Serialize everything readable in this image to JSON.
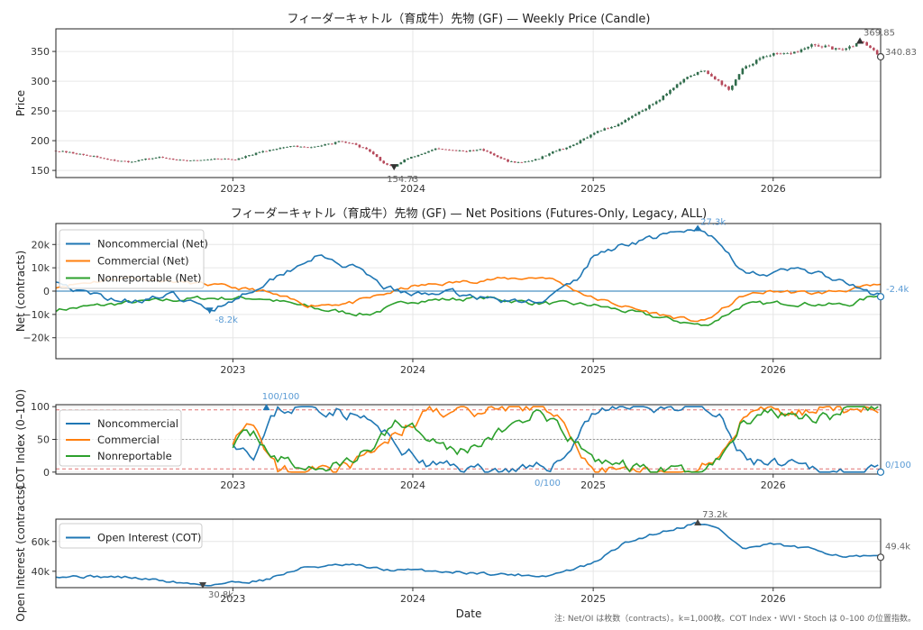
{
  "chart_data": [
    {
      "type": "candlestick",
      "title": "フィーダーキャトル（育成牛）先物 (GF) — Weekly Price (Candle)",
      "ylabel": "Price",
      "ylim": [
        138,
        388
      ],
      "xlim": [
        "2022-01-07",
        "2026-08-07"
      ],
      "yticks": [
        150,
        200,
        250,
        300,
        350
      ],
      "xticks": [
        "2023",
        "2024",
        "2025",
        "2026"
      ],
      "annotations": {
        "high": "369.85",
        "low": "154.73",
        "last": "340.83"
      },
      "colors": {
        "up": "#2e6b4a",
        "down": "#b5485a"
      },
      "series_points": [
        [
          "2022-01-07",
          183
        ],
        [
          "2022-02-04",
          180
        ],
        [
          "2022-03-04",
          176
        ],
        [
          "2022-04-01",
          172
        ],
        [
          "2022-05-06",
          167
        ],
        [
          "2022-06-03",
          164
        ],
        [
          "2022-07-01",
          168
        ],
        [
          "2022-08-05",
          172
        ],
        [
          "2022-09-02",
          169
        ],
        [
          "2022-10-07",
          166
        ],
        [
          "2022-11-04",
          168
        ],
        [
          "2022-12-02",
          170
        ],
        [
          "2023-01-06",
          168
        ],
        [
          "2023-02-03",
          175
        ],
        [
          "2023-03-03",
          182
        ],
        [
          "2023-04-07",
          188
        ],
        [
          "2023-05-05",
          191
        ],
        [
          "2023-06-02",
          188
        ],
        [
          "2023-07-07",
          193
        ],
        [
          "2023-08-04",
          198
        ],
        [
          "2023-09-01",
          195
        ],
        [
          "2023-10-06",
          182
        ],
        [
          "2023-11-03",
          162
        ],
        [
          "2023-11-24",
          156
        ],
        [
          "2023-12-15",
          168
        ],
        [
          "2024-01-19",
          178
        ],
        [
          "2024-02-16",
          186
        ],
        [
          "2024-03-15",
          184
        ],
        [
          "2024-04-19",
          182
        ],
        [
          "2024-05-17",
          186
        ],
        [
          "2024-06-14",
          176
        ],
        [
          "2024-07-12",
          165
        ],
        [
          "2024-08-09",
          163
        ],
        [
          "2024-09-13",
          170
        ],
        [
          "2024-10-11",
          182
        ],
        [
          "2024-11-15",
          190
        ],
        [
          "2024-12-13",
          203
        ],
        [
          "2025-01-17",
          218
        ],
        [
          "2025-02-14",
          225
        ],
        [
          "2025-03-14",
          238
        ],
        [
          "2025-04-18",
          255
        ],
        [
          "2025-05-16",
          270
        ],
        [
          "2025-06-13",
          290
        ],
        [
          "2025-07-18",
          310
        ],
        [
          "2025-08-15",
          318
        ],
        [
          "2025-09-12",
          300
        ],
        [
          "2025-10-03",
          285
        ],
        [
          "2025-10-31",
          320
        ],
        [
          "2025-11-28",
          335
        ],
        [
          "2025-12-26",
          345
        ],
        [
          "2026-01-23",
          345
        ],
        [
          "2026-02-20",
          350
        ],
        [
          "2026-03-20",
          360
        ],
        [
          "2026-04-17",
          358
        ],
        [
          "2026-05-15",
          352
        ],
        [
          "2026-06-12",
          360
        ],
        [
          "2026-06-26",
          369
        ],
        [
          "2026-07-17",
          355
        ],
        [
          "2026-08-07",
          341
        ]
      ]
    },
    {
      "type": "line",
      "title": "フィーダーキャトル（育成牛）先物 (GF) — Net Positions (Futures-Only, Legacy, ALL)",
      "ylabel": "Net (contracts)",
      "ylim": [
        -29000,
        29000
      ],
      "xlim": [
        "2022-01-07",
        "2026-08-07"
      ],
      "yticks": [
        -20000,
        -10000,
        0,
        10000,
        20000
      ],
      "ytick_labels": [
        "−20k",
        "−10k",
        "0",
        "10k",
        "20k"
      ],
      "xticks": [
        "2023",
        "2024",
        "2025",
        "2026"
      ],
      "legend": "top-left",
      "annotations": {
        "max": "27.3k",
        "min": "-8.2k",
        "last": "-2.4k"
      },
      "series": [
        {
          "name": "Noncommercial (Net)",
          "color": "#1f77b4",
          "points": [
            [
              "2022-01-07",
              5000
            ],
            [
              "2022-03-01",
              -1000
            ],
            [
              "2022-06-01",
              -4000
            ],
            [
              "2022-09-01",
              -2000
            ],
            [
              "2022-11-15",
              -8200
            ],
            [
              "2023-01-15",
              -2000
            ],
            [
              "2023-03-01",
              3000
            ],
            [
              "2023-05-01",
              10000
            ],
            [
              "2023-06-15",
              15000
            ],
            [
              "2023-09-01",
              10000
            ],
            [
              "2023-11-01",
              2000
            ],
            [
              "2024-01-01",
              -2000
            ],
            [
              "2024-03-01",
              0
            ],
            [
              "2024-06-01",
              -3000
            ],
            [
              "2024-08-01",
              -5000
            ],
            [
              "2024-10-01",
              -3000
            ],
            [
              "2024-12-01",
              5000
            ],
            [
              "2025-01-01",
              15000
            ],
            [
              "2025-03-01",
              20000
            ],
            [
              "2025-05-01",
              23000
            ],
            [
              "2025-07-01",
              25000
            ],
            [
              "2025-08-01",
              27300
            ],
            [
              "2025-09-15",
              20000
            ],
            [
              "2025-11-01",
              9000
            ],
            [
              "2026-01-01",
              7000
            ],
            [
              "2026-03-01",
              10000
            ],
            [
              "2026-05-01",
              5000
            ],
            [
              "2026-08-07",
              -2400
            ]
          ]
        },
        {
          "name": "Commercial (Net)",
          "color": "#ff7f0e",
          "points": [
            [
              "2022-01-07",
              2000
            ],
            [
              "2022-06-01",
              6000
            ],
            [
              "2022-11-01",
              3000
            ],
            [
              "2023-03-01",
              0
            ],
            [
              "2023-06-01",
              -6000
            ],
            [
              "2023-09-01",
              -5000
            ],
            [
              "2024-01-01",
              2000
            ],
            [
              "2024-06-01",
              5000
            ],
            [
              "2024-10-01",
              6000
            ],
            [
              "2025-01-01",
              -3000
            ],
            [
              "2025-04-01",
              -8000
            ],
            [
              "2025-07-01",
              -12000
            ],
            [
              "2025-08-15",
              -13000
            ],
            [
              "2025-11-01",
              -2000
            ],
            [
              "2026-01-01",
              0
            ],
            [
              "2026-04-01",
              -1000
            ],
            [
              "2026-08-07",
              2500
            ]
          ]
        },
        {
          "name": "Nonreportable (Net)",
          "color": "#2ca02c",
          "points": [
            [
              "2022-01-07",
              -8000
            ],
            [
              "2022-06-01",
              -5000
            ],
            [
              "2022-11-01",
              -3000
            ],
            [
              "2023-03-01",
              -3000
            ],
            [
              "2023-07-01",
              -8000
            ],
            [
              "2023-10-01",
              -10000
            ],
            [
              "2024-01-01",
              -4000
            ],
            [
              "2024-06-01",
              -3000
            ],
            [
              "2024-09-01",
              -5000
            ],
            [
              "2025-01-01",
              -6000
            ],
            [
              "2025-06-01",
              -12000
            ],
            [
              "2025-08-15",
              -15000
            ],
            [
              "2025-11-01",
              -6000
            ],
            [
              "2026-02-01",
              -5000
            ],
            [
              "2026-06-01",
              -6000
            ],
            [
              "2026-08-07",
              -1000
            ]
          ]
        }
      ]
    },
    {
      "type": "line",
      "title": "",
      "ylabel": "COT Index (0–100)",
      "ylim": [
        -3,
        103
      ],
      "xlim": [
        "2022-01-07",
        "2026-08-07"
      ],
      "yticks": [
        0,
        50,
        100
      ],
      "xticks": [
        "2023",
        "2024",
        "2025",
        "2026"
      ],
      "reference_lines": [
        5,
        50,
        95
      ],
      "legend": "top-left",
      "annotations": {
        "max": "100/100",
        "min": "0/100",
        "last": "0/100"
      },
      "series": [
        {
          "name": "Noncommercial",
          "color": "#1f77b4",
          "points": [
            [
              "2023-01-01",
              50
            ],
            [
              "2023-02-15",
              30
            ],
            [
              "2023-04-01",
              95
            ],
            [
              "2023-06-01",
              100
            ],
            [
              "2023-08-01",
              95
            ],
            [
              "2023-10-01",
              80
            ],
            [
              "2023-12-01",
              40
            ],
            [
              "2024-02-01",
              10
            ],
            [
              "2024-06-01",
              5
            ],
            [
              "2024-09-01",
              0
            ],
            [
              "2024-11-01",
              20
            ],
            [
              "2025-01-01",
              95
            ],
            [
              "2025-04-01",
              100
            ],
            [
              "2025-08-01",
              100
            ],
            [
              "2025-09-15",
              80
            ],
            [
              "2025-11-01",
              20
            ],
            [
              "2026-01-01",
              10
            ],
            [
              "2026-03-01",
              5
            ],
            [
              "2026-05-01",
              0
            ],
            [
              "2026-08-07",
              0
            ]
          ]
        },
        {
          "name": "Commercial",
          "color": "#ff7f0e",
          "points": [
            [
              "2023-01-01",
              50
            ],
            [
              "2023-02-15",
              70
            ],
            [
              "2023-04-01",
              5
            ],
            [
              "2023-06-01",
              0
            ],
            [
              "2023-08-01",
              5
            ],
            [
              "2023-10-01",
              20
            ],
            [
              "2023-12-01",
              60
            ],
            [
              "2024-02-01",
              90
            ],
            [
              "2024-06-01",
              95
            ],
            [
              "2024-09-01",
              100
            ],
            [
              "2024-11-01",
              80
            ],
            [
              "2025-01-01",
              5
            ],
            [
              "2025-04-01",
              0
            ],
            [
              "2025-08-01",
              0
            ],
            [
              "2025-09-15",
              20
            ],
            [
              "2025-11-01",
              80
            ],
            [
              "2026-01-01",
              90
            ],
            [
              "2026-04-01",
              95
            ],
            [
              "2026-08-07",
              95
            ]
          ]
        },
        {
          "name": "Nonreportable",
          "color": "#2ca02c",
          "points": [
            [
              "2023-01-01",
              45
            ],
            [
              "2023-02-15",
              60
            ],
            [
              "2023-04-01",
              20
            ],
            [
              "2023-06-01",
              5
            ],
            [
              "2023-08-01",
              10
            ],
            [
              "2023-10-01",
              30
            ],
            [
              "2023-12-01",
              80
            ],
            [
              "2024-02-01",
              60
            ],
            [
              "2024-04-01",
              30
            ],
            [
              "2024-06-01",
              50
            ],
            [
              "2024-09-01",
              90
            ],
            [
              "2024-11-01",
              60
            ],
            [
              "2025-01-01",
              20
            ],
            [
              "2025-04-01",
              5
            ],
            [
              "2025-08-01",
              0
            ],
            [
              "2025-09-15",
              20
            ],
            [
              "2025-11-01",
              80
            ],
            [
              "2026-01-01",
              95
            ],
            [
              "2026-04-01",
              85
            ],
            [
              "2026-08-07",
              100
            ]
          ]
        }
      ]
    },
    {
      "type": "line",
      "title": "",
      "ylabel": "Open Interest (contracts)",
      "xlabel": "Date",
      "ylim": [
        29000,
        75000
      ],
      "xlim": [
        "2022-01-07",
        "2026-08-07"
      ],
      "yticks": [
        40000,
        60000
      ],
      "ytick_labels": [
        "40k",
        "60k"
      ],
      "xticks": [
        "2023",
        "2024",
        "2025",
        "2026"
      ],
      "legend": "top-left",
      "annotations": {
        "max": "73.2k",
        "min": "30.8k",
        "last": "49.4k"
      },
      "series": [
        {
          "name": "Open Interest (COT)",
          "color": "#1f77b4",
          "points": [
            [
              "2022-01-07",
              37000
            ],
            [
              "2022-06-01",
              36000
            ],
            [
              "2022-11-01",
              30800
            ],
            [
              "2023-03-01",
              34000
            ],
            [
              "2023-06-01",
              43000
            ],
            [
              "2023-09-01",
              44000
            ],
            [
              "2023-11-01",
              41000
            ],
            [
              "2024-03-01",
              40000
            ],
            [
              "2024-07-01",
              38000
            ],
            [
              "2024-10-01",
              37000
            ],
            [
              "2025-01-01",
              45000
            ],
            [
              "2025-03-01",
              58000
            ],
            [
              "2025-05-01",
              65000
            ],
            [
              "2025-07-01",
              70000
            ],
            [
              "2025-08-01",
              73200
            ],
            [
              "2025-09-15",
              68000
            ],
            [
              "2025-11-01",
              55000
            ],
            [
              "2026-01-01",
              58000
            ],
            [
              "2026-04-01",
              54000
            ],
            [
              "2026-06-01",
              50000
            ],
            [
              "2026-08-07",
              49400
            ]
          ]
        }
      ]
    }
  ],
  "footnote": "注: Net/OI は枚数（contracts）。k=1,000枚。COT Index・WVI・Stoch は 0–100 の位置指数。"
}
